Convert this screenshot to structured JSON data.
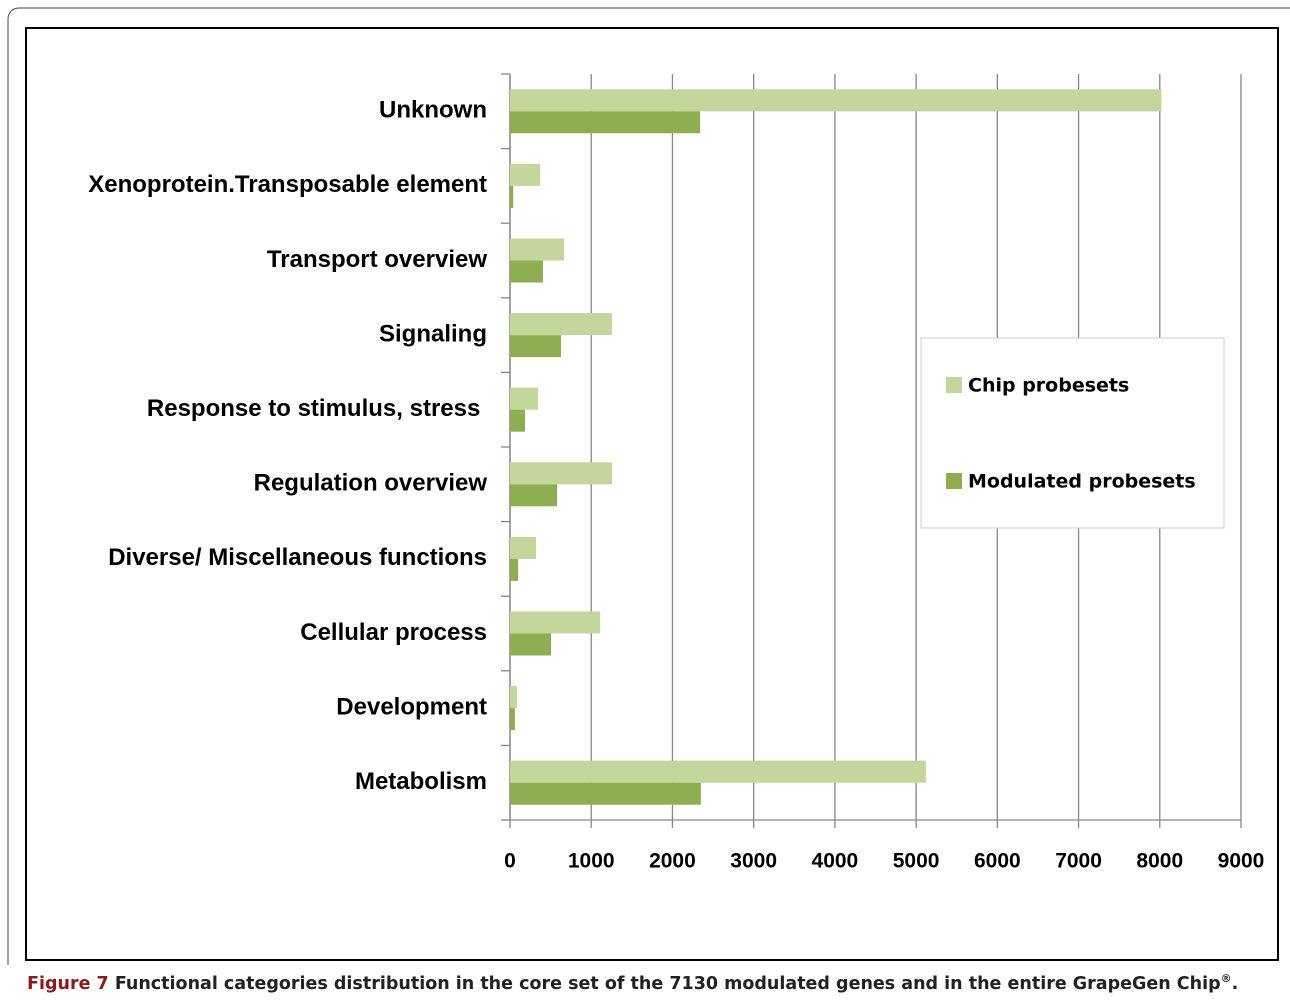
{
  "chart_data": {
    "type": "hbar",
    "categories": [
      "Unknown",
      "Xenoprotein.Transposable element",
      "Transport overview",
      "Signaling",
      "Response to stimulus, stress ",
      "Regulation overview",
      "Diverse/ Miscellaneous functions",
      "Cellular process",
      "Development",
      "Metabolism"
    ],
    "series": [
      {
        "name": "Chip probesets",
        "color": "#c3d69b",
        "values": [
          8020,
          370,
          665,
          1256,
          345,
          1256,
          320,
          1110,
          85,
          5120
        ]
      },
      {
        "name": "Modulated probesets",
        "color": "#8fae52",
        "values": [
          2340,
          40,
          405,
          628,
          185,
          580,
          100,
          505,
          60,
          2350
        ]
      }
    ],
    "xlim": [
      0,
      9000
    ],
    "xticks": [
      0,
      1000,
      2000,
      3000,
      4000,
      5000,
      6000,
      7000,
      8000,
      9000
    ],
    "grid": true
  },
  "caption": {
    "label": "Figure 7",
    "text": "Functional categories distribution in the core set of the 7130 modulated genes and in the entire GrapeGen Chip",
    "superscript": "®",
    "end": "."
  }
}
